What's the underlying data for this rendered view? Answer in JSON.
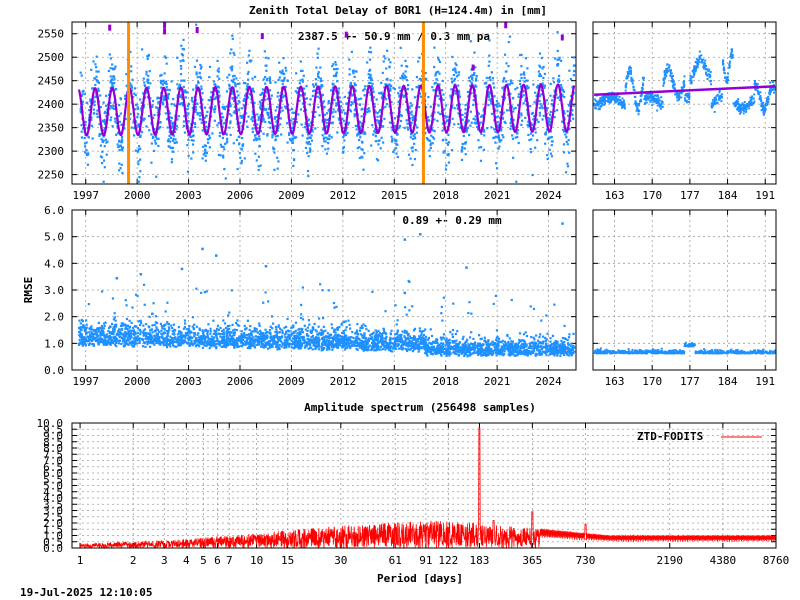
{
  "colors": {
    "ztd_points": "#1e90ff",
    "ztd_model": "#9400d3",
    "outliers": "#9400d3",
    "events": "#ff8c00",
    "spectrum": "#ff0000",
    "grid": "#a0a0a0"
  },
  "timestamp": "19-Jul-2025 12:10:05",
  "chart_data": [
    {
      "type": "scatter",
      "title": "Zenith Total Delay of BOR1 (H=124.4m) in [mm]",
      "annotation": "2387.5 +-  50.9 mm /  0.3 mm pa",
      "xlabel": "",
      "ylabel": "",
      "xlim": [
        1996.2,
        2025.6
      ],
      "ylim": [
        2230,
        2575
      ],
      "x_ticks": [
        "1997",
        "2000",
        "2003",
        "2006",
        "2009",
        "2012",
        "2015",
        "2018",
        "2021",
        "2024"
      ],
      "y_ticks": [
        "2250",
        "2300",
        "2350",
        "2400",
        "2450",
        "2500",
        "2550"
      ],
      "mean": 2387.5,
      "std": 50.9,
      "trend_mm_per_year": 0.3,
      "seasonal_amplitude": 50,
      "event_lines": [
        1999.5,
        2016.7
      ],
      "grid": true
    },
    {
      "type": "scatter",
      "title": "",
      "xlabel": "",
      "ylabel": "",
      "xlim": [
        159,
        193
      ],
      "ylim": [
        2230,
        2575
      ],
      "x_ticks": [
        "163",
        "170",
        "177",
        "184",
        "191"
      ],
      "model_start": 2420,
      "model_end": 2438,
      "grid": true
    },
    {
      "type": "scatter",
      "title": "",
      "annotation": "0.89 +-  0.29 mm",
      "xlabel": "",
      "ylabel": "RMSE",
      "xlim": [
        1996.2,
        2025.6
      ],
      "ylim": [
        0,
        6
      ],
      "x_ticks": [
        "1997",
        "2000",
        "2003",
        "2006",
        "2009",
        "2012",
        "2015",
        "2018",
        "2021",
        "2024"
      ],
      "y_ticks": [
        "0.0",
        "1.0",
        "2.0",
        "3.0",
        "4.0",
        "5.0",
        "6.0"
      ],
      "mean": 0.89,
      "std": 0.29,
      "grid": true
    },
    {
      "type": "scatter",
      "title": "",
      "xlabel": "",
      "ylabel": "",
      "xlim": [
        159,
        193
      ],
      "ylim": [
        0,
        6
      ],
      "x_ticks": [
        "163",
        "170",
        "177",
        "184",
        "191"
      ],
      "grid": true
    },
    {
      "type": "line",
      "title": "Amplitude spectrum (256498 samples)",
      "xlabel": "Period [days]",
      "ylabel": "",
      "x_scale": "log",
      "xlim": [
        0.9,
        8760
      ],
      "ylim": [
        0,
        10
      ],
      "x_ticks": [
        "1",
        "2",
        "3",
        "4",
        "5",
        "6",
        "7",
        "10",
        "15",
        "30",
        "61",
        "91",
        "122",
        "183",
        "365",
        "730",
        "2190",
        "4380",
        "8760"
      ],
      "y_ticks": [
        "0.0",
        "0.5",
        "1.0",
        "1.5",
        "2.0",
        "2.5",
        "3.0",
        "3.5",
        "4.0",
        "4.5",
        "5.0",
        "5.5",
        "6.0",
        "6.5",
        "7.0",
        "7.5",
        "8.0",
        "8.5",
        "9.0",
        "9.5",
        "10.0"
      ],
      "legend": "top-right",
      "series": [
        {
          "name": "ZTD-FODITS",
          "peaks": [
            {
              "period": 183,
              "amplitude": 9.6
            },
            {
              "period": 365,
              "amplitude": 2.9
            },
            {
              "period": 220,
              "amplitude": 2.2
            },
            {
              "period": 730,
              "amplitude": 1.9
            }
          ],
          "envelope": [
            {
              "period": 1,
              "amplitude": 0.35
            },
            {
              "period": 3,
              "amplitude": 0.6
            },
            {
              "period": 10,
              "amplitude": 1.2
            },
            {
              "period": 30,
              "amplitude": 1.8
            },
            {
              "period": 100,
              "amplitude": 2.2
            },
            {
              "period": 183,
              "amplitude": 2.0
            },
            {
              "period": 1000,
              "amplitude": 1.0
            },
            {
              "period": 8760,
              "amplitude": 1.0
            }
          ]
        }
      ],
      "grid": true
    }
  ]
}
